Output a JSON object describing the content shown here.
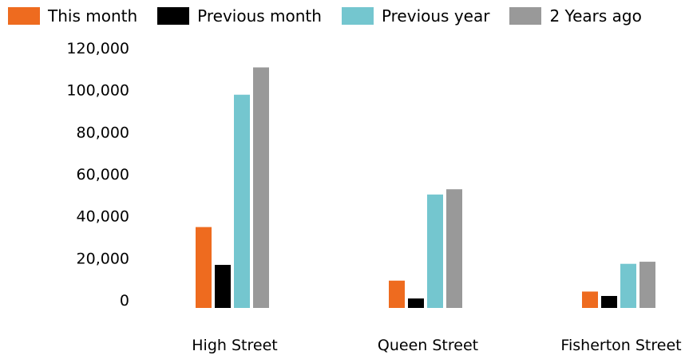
{
  "chart_data": {
    "type": "bar",
    "categories": [
      "High Street",
      "Queen Street",
      "Fisherton Street"
    ],
    "series": [
      {
        "name": "This month",
        "color": "#EE6B1F",
        "values": [
          38500,
          13000,
          7800
        ]
      },
      {
        "name": "Previous month",
        "color": "#000000",
        "values": [
          20500,
          4500,
          5700
        ]
      },
      {
        "name": "Previous year",
        "color": "#74C6CF",
        "values": [
          101500,
          54000,
          21000
        ]
      },
      {
        "name": "2 Years ago",
        "color": "#999999",
        "values": [
          114500,
          56500,
          22000
        ]
      }
    ],
    "yticks": [
      "0",
      "20,000",
      "40,000",
      "60,000",
      "80,000",
      "100,000",
      "120,000"
    ],
    "ylim": [
      0,
      120000
    ],
    "title": "",
    "xlabel": "",
    "ylabel": "",
    "legend": "top-left",
    "grid": false
  }
}
